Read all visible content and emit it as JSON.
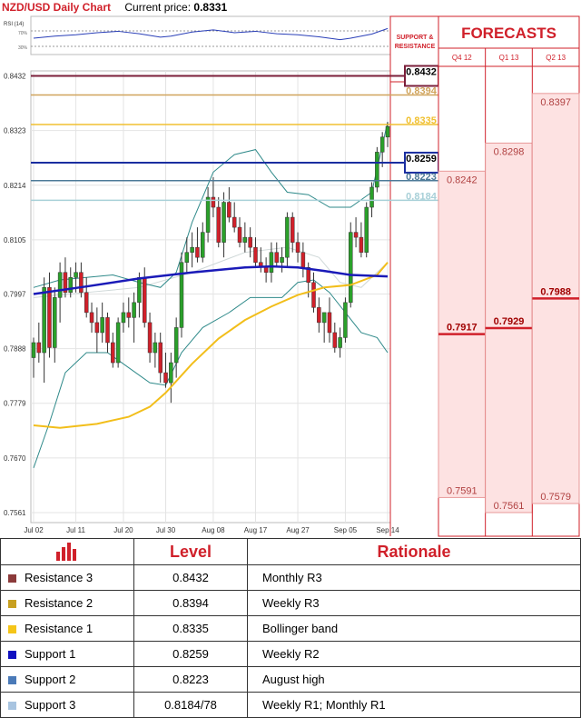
{
  "header": {
    "title": "NZD/USD Daily Chart",
    "current_price_label": "Current price:",
    "current_price": "0.8331"
  },
  "chart_data": {
    "type": "candlestick",
    "title": "NZD/USD Daily Chart",
    "y_ticks": [
      "0.8432",
      "0.8323",
      "0.8214",
      "0.8105",
      "0.7997",
      "0.7888",
      "0.7779",
      "0.7670",
      "0.7561"
    ],
    "x_ticks": [
      "Jul 02",
      "Jul 11",
      "Jul 20",
      "Jul 30",
      "Aug 08",
      "Aug 17",
      "Aug 27",
      "Sep 05",
      "Sep 14"
    ],
    "ylim": [
      0.7541,
      0.8442
    ],
    "rsi_label": "RSI (14)",
    "rsi_levels": [
      "70%",
      "30%"
    ],
    "candles": [
      [
        0.787,
        0.791,
        0.783,
        0.79
      ],
      [
        0.79,
        0.794,
        0.786,
        0.788
      ],
      [
        0.788,
        0.803,
        0.782,
        0.801
      ],
      [
        0.801,
        0.804,
        0.787,
        0.789
      ],
      [
        0.789,
        0.801,
        0.786,
        0.799
      ],
      [
        0.799,
        0.806,
        0.794,
        0.804
      ],
      [
        0.804,
        0.807,
        0.799,
        0.8
      ],
      [
        0.8,
        0.805,
        0.799,
        0.803
      ],
      [
        0.803,
        0.806,
        0.8,
        0.804
      ],
      [
        0.804,
        0.806,
        0.799,
        0.8
      ],
      [
        0.8,
        0.803,
        0.795,
        0.796
      ],
      [
        0.796,
        0.798,
        0.792,
        0.794
      ],
      [
        0.794,
        0.797,
        0.788,
        0.792
      ],
      [
        0.792,
        0.798,
        0.79,
        0.795
      ],
      [
        0.795,
        0.796,
        0.788,
        0.79
      ],
      [
        0.79,
        0.792,
        0.785,
        0.786
      ],
      [
        0.786,
        0.795,
        0.785,
        0.794
      ],
      [
        0.794,
        0.798,
        0.792,
        0.796
      ],
      [
        0.796,
        0.799,
        0.793,
        0.795
      ],
      [
        0.795,
        0.8,
        0.79,
        0.798
      ],
      [
        0.798,
        0.804,
        0.795,
        0.803
      ],
      [
        0.803,
        0.805,
        0.793,
        0.794
      ],
      [
        0.794,
        0.796,
        0.786,
        0.788
      ],
      [
        0.788,
        0.792,
        0.785,
        0.79
      ],
      [
        0.79,
        0.792,
        0.782,
        0.784
      ],
      [
        0.784,
        0.788,
        0.781,
        0.782
      ],
      [
        0.782,
        0.788,
        0.778,
        0.786
      ],
      [
        0.786,
        0.795,
        0.783,
        0.793
      ],
      [
        0.793,
        0.808,
        0.791,
        0.806
      ],
      [
        0.806,
        0.811,
        0.804,
        0.808
      ],
      [
        0.808,
        0.812,
        0.805,
        0.809
      ],
      [
        0.809,
        0.813,
        0.806,
        0.807
      ],
      [
        0.807,
        0.814,
        0.806,
        0.812
      ],
      [
        0.812,
        0.821,
        0.81,
        0.819
      ],
      [
        0.819,
        0.823,
        0.815,
        0.817
      ],
      [
        0.817,
        0.819,
        0.809,
        0.81
      ],
      [
        0.81,
        0.82,
        0.807,
        0.818
      ],
      [
        0.818,
        0.821,
        0.814,
        0.815
      ],
      [
        0.815,
        0.818,
        0.812,
        0.813
      ],
      [
        0.813,
        0.815,
        0.809,
        0.81
      ],
      [
        0.81,
        0.814,
        0.808,
        0.811
      ],
      [
        0.811,
        0.813,
        0.807,
        0.809
      ],
      [
        0.809,
        0.811,
        0.805,
        0.806
      ],
      [
        0.806,
        0.809,
        0.804,
        0.805
      ],
      [
        0.805,
        0.807,
        0.802,
        0.804
      ],
      [
        0.804,
        0.81,
        0.802,
        0.808
      ],
      [
        0.808,
        0.81,
        0.805,
        0.806
      ],
      [
        0.806,
        0.809,
        0.804,
        0.807
      ],
      [
        0.807,
        0.816,
        0.805,
        0.815
      ],
      [
        0.815,
        0.816,
        0.808,
        0.81
      ],
      [
        0.81,
        0.812,
        0.806,
        0.808
      ],
      [
        0.808,
        0.81,
        0.803,
        0.805
      ],
      [
        0.805,
        0.806,
        0.799,
        0.802
      ],
      [
        0.802,
        0.804,
        0.796,
        0.797
      ],
      [
        0.797,
        0.799,
        0.792,
        0.794
      ],
      [
        0.794,
        0.796,
        0.79,
        0.796
      ],
      [
        0.796,
        0.799,
        0.79,
        0.792
      ],
      [
        0.792,
        0.794,
        0.788,
        0.789
      ],
      [
        0.789,
        0.793,
        0.787,
        0.791
      ],
      [
        0.791,
        0.799,
        0.79,
        0.798
      ],
      [
        0.798,
        0.814,
        0.797,
        0.812
      ],
      [
        0.812,
        0.815,
        0.809,
        0.811
      ],
      [
        0.811,
        0.814,
        0.807,
        0.808
      ],
      [
        0.808,
        0.818,
        0.807,
        0.817
      ],
      [
        0.817,
        0.822,
        0.815,
        0.821
      ],
      [
        0.821,
        0.829,
        0.82,
        0.828
      ],
      [
        0.828,
        0.832,
        0.825,
        0.831
      ],
      [
        0.831,
        0.834,
        0.829,
        0.8331
      ]
    ],
    "sma_blue": [
      [
        0,
        0.7997
      ],
      [
        10,
        0.8012
      ],
      [
        20,
        0.8028
      ],
      [
        30,
        0.804
      ],
      [
        40,
        0.805
      ],
      [
        45,
        0.8052
      ],
      [
        50,
        0.805
      ],
      [
        55,
        0.8043
      ],
      [
        60,
        0.8035
      ],
      [
        67,
        0.8032
      ]
    ],
    "sma_gold": [
      [
        0,
        0.7735
      ],
      [
        5,
        0.773
      ],
      [
        12,
        0.7738
      ],
      [
        18,
        0.7752
      ],
      [
        22,
        0.7772
      ],
      [
        25,
        0.78
      ],
      [
        30,
        0.7858
      ],
      [
        35,
        0.7908
      ],
      [
        40,
        0.7945
      ],
      [
        45,
        0.7972
      ],
      [
        50,
        0.7995
      ],
      [
        55,
        0.801
      ],
      [
        60,
        0.8015
      ],
      [
        65,
        0.8035
      ],
      [
        67,
        0.806
      ]
    ],
    "bb_upper": [
      [
        0,
        0.801
      ],
      [
        5,
        0.8025
      ],
      [
        10,
        0.803
      ],
      [
        15,
        0.8035
      ],
      [
        20,
        0.802
      ],
      [
        24,
        0.801
      ],
      [
        27,
        0.804
      ],
      [
        30,
        0.814
      ],
      [
        34,
        0.824
      ],
      [
        38,
        0.8275
      ],
      [
        42,
        0.8285
      ],
      [
        45,
        0.824
      ],
      [
        48,
        0.82
      ],
      [
        52,
        0.8195
      ],
      [
        56,
        0.817
      ],
      [
        60,
        0.817
      ],
      [
        64,
        0.82
      ],
      [
        67,
        0.834
      ]
    ],
    "bb_lower": [
      [
        0,
        0.765
      ],
      [
        3,
        0.774
      ],
      [
        6,
        0.784
      ],
      [
        10,
        0.788
      ],
      [
        14,
        0.788
      ],
      [
        18,
        0.785
      ],
      [
        22,
        0.782
      ],
      [
        25,
        0.7815
      ],
      [
        28,
        0.788
      ],
      [
        32,
        0.793
      ],
      [
        37,
        0.796
      ],
      [
        41,
        0.799
      ],
      [
        44,
        0.799
      ],
      [
        47,
        0.799
      ],
      [
        50,
        0.802
      ],
      [
        53,
        0.8025
      ],
      [
        56,
        0.8
      ],
      [
        59,
        0.796
      ],
      [
        62,
        0.792
      ],
      [
        65,
        0.791
      ],
      [
        67,
        0.788
      ]
    ],
    "bb_mid": [
      [
        0,
        0.799
      ],
      [
        10,
        0.8
      ],
      [
        20,
        0.801
      ],
      [
        30,
        0.804
      ],
      [
        40,
        0.808
      ],
      [
        48,
        0.809
      ],
      [
        54,
        0.807
      ],
      [
        58,
        0.802
      ],
      [
        62,
        0.801
      ],
      [
        67,
        0.806
      ]
    ],
    "rsi": [
      [
        0,
        42
      ],
      [
        4,
        48
      ],
      [
        8,
        52
      ],
      [
        12,
        58
      ],
      [
        16,
        62
      ],
      [
        20,
        55
      ],
      [
        24,
        45
      ],
      [
        26,
        48
      ],
      [
        30,
        60
      ],
      [
        34,
        66
      ],
      [
        38,
        58
      ],
      [
        42,
        62
      ],
      [
        46,
        55
      ],
      [
        50,
        52
      ],
      [
        54,
        46
      ],
      [
        58,
        38
      ],
      [
        60,
        42
      ],
      [
        64,
        54
      ],
      [
        67,
        70
      ]
    ],
    "levels": {
      "header": "SUPPORT & RESISTANCE",
      "items": [
        {
          "name": "Resistance 3",
          "value": "0.8432",
          "price": 0.8432,
          "color": "#7b1f3a",
          "style": "box"
        },
        {
          "name": "Resistance 2",
          "value": "0.8394",
          "price": 0.8394,
          "color": "#d0a45c",
          "style": "text"
        },
        {
          "name": "Resistance 1",
          "value": "0.8335",
          "price": 0.8335,
          "color": "#f0c030",
          "style": "text"
        },
        {
          "name": "Support 1",
          "value": "0.8259",
          "price": 0.8259,
          "color": "#1a2ea0",
          "style": "box"
        },
        {
          "name": "Support 2",
          "value": "0.8223",
          "price": 0.8223,
          "color": "#4d7a98",
          "style": "text"
        },
        {
          "name": "Support 3",
          "value": "0.8184",
          "price": 0.8184,
          "color": "#a8d0d8",
          "style": "text"
        }
      ]
    },
    "forecasts": {
      "title": "FORECASTS",
      "columns": [
        {
          "period": "Q4 12",
          "high": "0.8242",
          "high_price": 0.8242,
          "mid": "0.7917",
          "mid_price": 0.7917,
          "low": "0.7591",
          "low_price": 0.7591
        },
        {
          "period": "Q1 13",
          "high": "0.8298",
          "high_price": 0.8298,
          "mid": "0.7929",
          "mid_price": 0.7929,
          "low": "0.7561",
          "low_price": 0.7561
        },
        {
          "period": "Q2 13",
          "high": "0.8397",
          "high_price": 0.8397,
          "mid": "0.7988",
          "mid_price": 0.7988,
          "low": "0.7579",
          "low_price": 0.7579
        }
      ]
    }
  },
  "table": {
    "headers": [
      "Level",
      "Rationale"
    ],
    "rows": [
      {
        "name": "Resistance 3",
        "level": "0.8432",
        "rationale": "Monthly R3",
        "color": "#8b3a3a"
      },
      {
        "name": "Resistance 2",
        "level": "0.8394",
        "rationale": "Weekly R3",
        "color": "#c8a020"
      },
      {
        "name": "Resistance 1",
        "level": "0.8335",
        "rationale": "Bollinger band",
        "color": "#f5c518"
      },
      {
        "name": "Support 1",
        "level": "0.8259",
        "rationale": "Weekly R2",
        "color": "#1010c0"
      },
      {
        "name": "Support 2",
        "level": "0.8223",
        "rationale": "August high",
        "color": "#4a7ab8"
      },
      {
        "name": "Support 3",
        "level": "0.8184/78",
        "rationale": "Weekly R1; Monthly R1",
        "color": "#a8c4e0"
      }
    ]
  }
}
